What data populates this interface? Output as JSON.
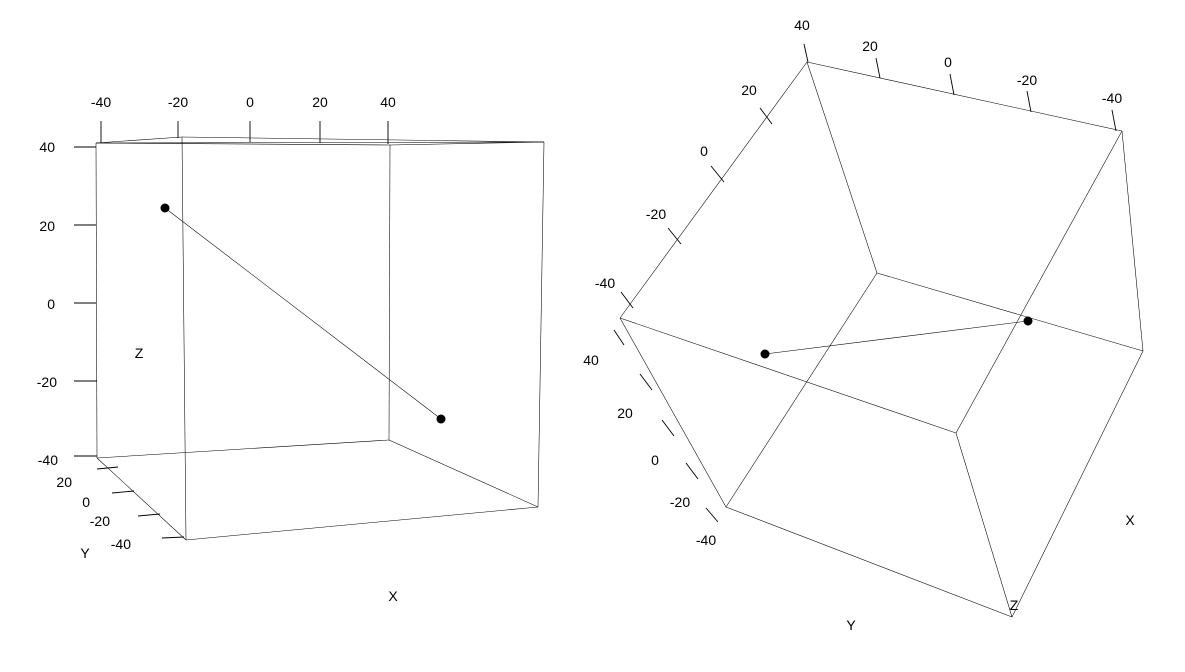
{
  "chart_data": [
    {
      "type": "scatter3d",
      "view": "front",
      "xlabel": "X",
      "ylabel": "Y",
      "zlabel": "Z",
      "x_ticks": [
        "-40",
        "-20",
        "0",
        "20",
        "40"
      ],
      "y_ticks": [
        "20",
        "0",
        "-20",
        "-40"
      ],
      "z_ticks": [
        "40",
        "20",
        "0",
        "-20",
        "-40"
      ],
      "points": [
        {
          "x": -40,
          "y": -40,
          "z": 40
        },
        {
          "x": 40,
          "y": 40,
          "z": -40
        }
      ],
      "connected": true
    },
    {
      "type": "scatter3d",
      "view": "rotated",
      "xlabel": "X",
      "ylabel": "Y",
      "zlabel": "Z",
      "x_ticks": [
        "40",
        "20",
        "0",
        "-20",
        "-40"
      ],
      "y_ticks": [
        "40",
        "20",
        "0",
        "-20",
        "-40"
      ],
      "z_ticks": [
        "20",
        "0",
        "-20",
        "-40"
      ],
      "points": [
        {
          "x": -40,
          "y": -40,
          "z": 40
        },
        {
          "x": 40,
          "y": 40,
          "z": -40
        }
      ],
      "connected": true
    }
  ]
}
